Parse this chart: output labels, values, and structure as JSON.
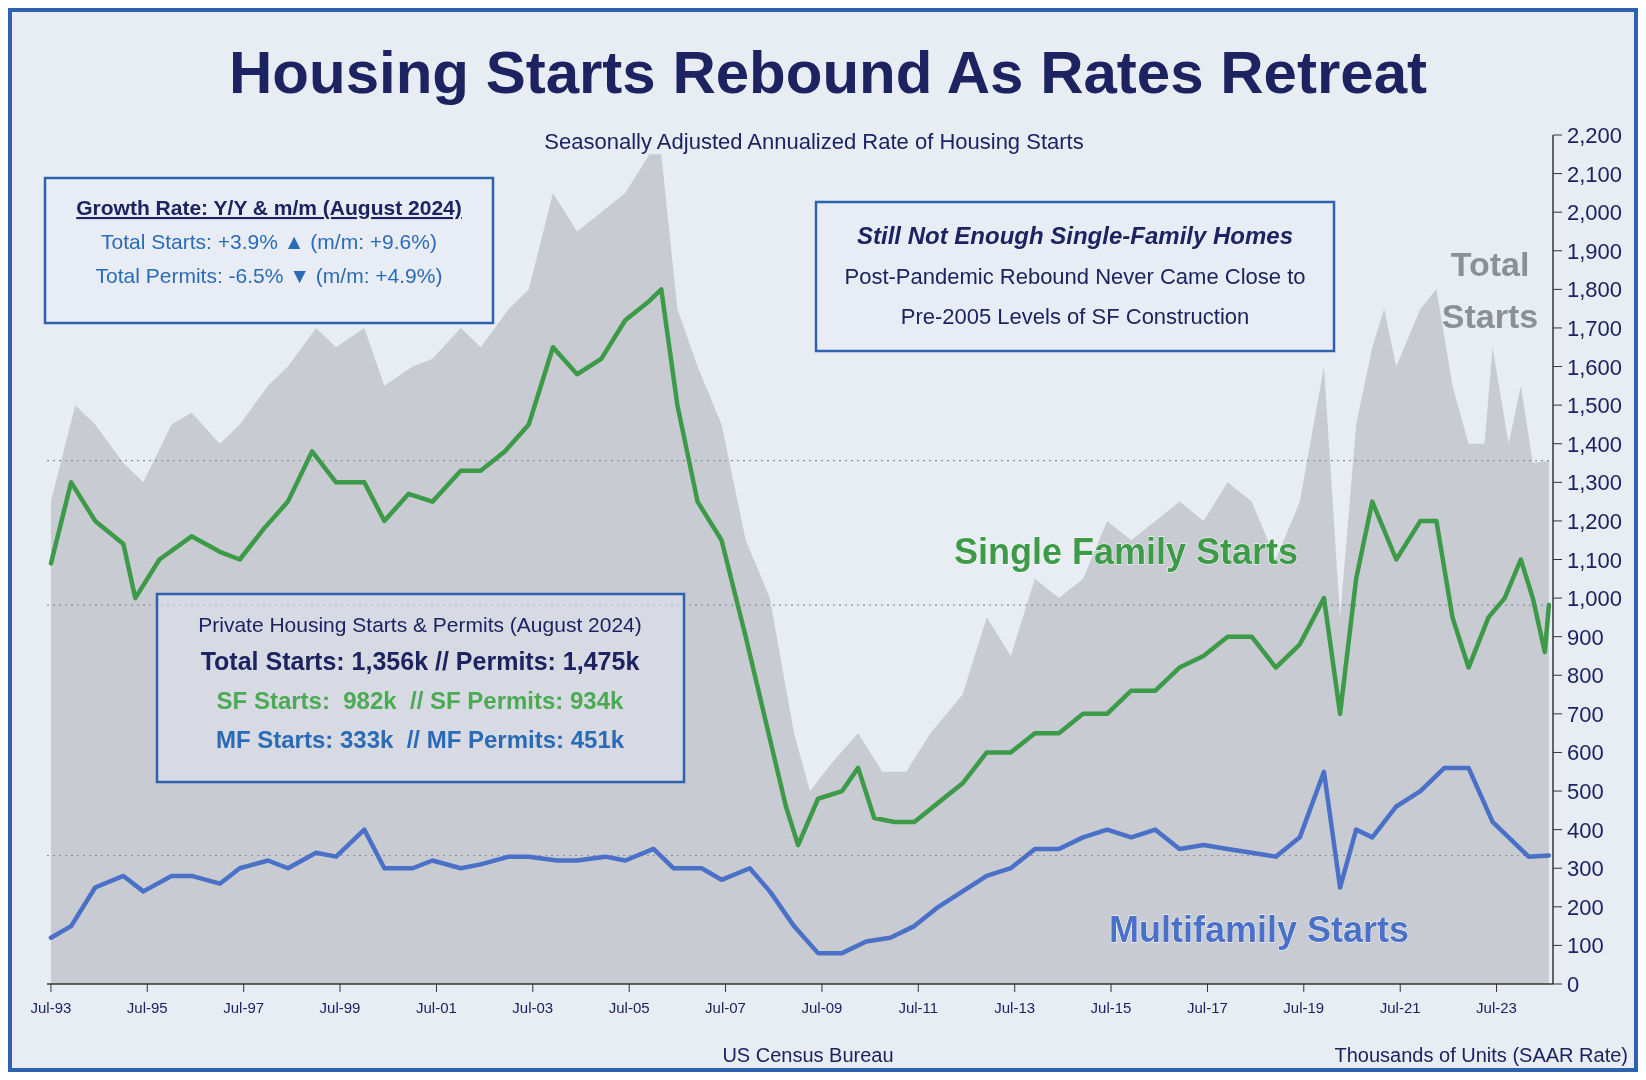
{
  "chart_data": {
    "type": "line",
    "title": "Housing Starts Rebound As Rates Retreat",
    "subtitle": "Seasonally Adjusted Annualized Rate of Housing Starts",
    "xlim": [
      "1993-06",
      "2024-09"
    ],
    "xticks": [
      {
        "value": "1993-07",
        "label": "Jul-93"
      },
      {
        "value": "1995-07",
        "label": "Jul-95"
      },
      {
        "value": "1997-07",
        "label": "Jul-97"
      },
      {
        "value": "1999-07",
        "label": "Jul-99"
      },
      {
        "value": "2001-07",
        "label": "Jul-01"
      },
      {
        "value": "2003-07",
        "label": "Jul-03"
      },
      {
        "value": "2005-07",
        "label": "Jul-05"
      },
      {
        "value": "2007-07",
        "label": "Jul-07"
      },
      {
        "value": "2009-07",
        "label": "Jul-09"
      },
      {
        "value": "2011-07",
        "label": "Jul-11"
      },
      {
        "value": "2013-07",
        "label": "Jul-13"
      },
      {
        "value": "2015-07",
        "label": "Jul-15"
      },
      {
        "value": "2017-07",
        "label": "Jul-17"
      },
      {
        "value": "2019-07",
        "label": "Jul-19"
      },
      {
        "value": "2021-07",
        "label": "Jul-21"
      },
      {
        "value": "2023-07",
        "label": "Jul-23"
      }
    ],
    "ylim": [
      0,
      2200
    ],
    "yticks": [
      0,
      100,
      200,
      300,
      400,
      500,
      600,
      700,
      800,
      900,
      {
        "value": 1000,
        "label": "1,000"
      },
      {
        "value": 1100,
        "label": "1,100"
      },
      {
        "value": 1200,
        "label": "1,200"
      },
      {
        "value": 1300,
        "label": "1,300"
      },
      {
        "value": 1400,
        "label": "1,400"
      },
      {
        "value": 1500,
        "label": "1,500"
      },
      {
        "value": 1600,
        "label": "1,600"
      },
      {
        "value": 1700,
        "label": "1,700"
      },
      {
        "value": 1800,
        "label": "1,800"
      },
      {
        "value": 1900,
        "label": "1,900"
      },
      {
        "value": 2000,
        "label": "2,000"
      },
      {
        "value": 2100,
        "label": "2,100"
      },
      {
        "value": 2200,
        "label": "2,200"
      }
    ],
    "series": [
      {
        "name": "Total Starts",
        "type": "area",
        "color": "#c8cbd1",
        "x": [
          "1993-07",
          "1994-01",
          "1994-06",
          "1995-01",
          "1995-06",
          "1996-01",
          "1996-06",
          "1997-01",
          "1997-06",
          "1998-01",
          "1998-06",
          "1999-01",
          "1999-06",
          "2000-01",
          "2000-06",
          "2001-01",
          "2001-06",
          "2002-01",
          "2002-06",
          "2003-01",
          "2003-06",
          "2003-12",
          "2004-06",
          "2004-12",
          "2005-06",
          "2005-12",
          "2006-03",
          "2006-07",
          "2006-12",
          "2007-06",
          "2007-12",
          "2008-06",
          "2008-12",
          "2009-04",
          "2009-10",
          "2010-04",
          "2010-10",
          "2011-04",
          "2011-10",
          "2012-06",
          "2012-12",
          "2013-06",
          "2013-12",
          "2014-06",
          "2014-12",
          "2015-06",
          "2015-12",
          "2016-06",
          "2016-12",
          "2017-06",
          "2017-12",
          "2018-06",
          "2018-12",
          "2019-06",
          "2019-12",
          "2020-04",
          "2020-08",
          "2020-12",
          "2021-03",
          "2021-06",
          "2021-12",
          "2022-04",
          "2022-08",
          "2022-12",
          "2023-04",
          "2023-06",
          "2023-10",
          "2024-01",
          "2024-04",
          "2024-08"
        ],
        "values": [
          1250,
          1500,
          1450,
          1350,
          1300,
          1450,
          1480,
          1400,
          1450,
          1550,
          1600,
          1700,
          1650,
          1700,
          1550,
          1600,
          1620,
          1700,
          1650,
          1750,
          1800,
          2050,
          1950,
          2000,
          2050,
          2150,
          2150,
          1750,
          1600,
          1450,
          1150,
          1000,
          650,
          500,
          580,
          650,
          550,
          550,
          650,
          750,
          950,
          850,
          1050,
          1000,
          1050,
          1200,
          1150,
          1200,
          1250,
          1200,
          1300,
          1250,
          1100,
          1250,
          1600,
          950,
          1450,
          1650,
          1750,
          1600,
          1750,
          1800,
          1550,
          1400,
          1400,
          1650,
          1400,
          1550,
          1350,
          1356
        ]
      },
      {
        "name": "Single Family Starts",
        "color": "#3c9a48",
        "x": [
          "1993-07",
          "1993-12",
          "1994-06",
          "1995-01",
          "1995-04",
          "1995-10",
          "1996-06",
          "1997-01",
          "1997-06",
          "1997-12",
          "1998-06",
          "1998-12",
          "1999-06",
          "2000-01",
          "2000-06",
          "2000-12",
          "2001-06",
          "2002-01",
          "2002-06",
          "2002-12",
          "2003-06",
          "2003-12",
          "2004-06",
          "2004-12",
          "2005-06",
          "2005-12",
          "2006-03",
          "2006-07",
          "2006-12",
          "2007-06",
          "2007-12",
          "2008-05",
          "2008-10",
          "2009-01",
          "2009-06",
          "2009-12",
          "2010-04",
          "2010-08",
          "2011-01",
          "2011-06",
          "2011-12",
          "2012-06",
          "2012-12",
          "2013-06",
          "2013-12",
          "2014-06",
          "2014-12",
          "2015-06",
          "2015-12",
          "2016-06",
          "2016-12",
          "2017-06",
          "2017-12",
          "2018-06",
          "2018-12",
          "2019-06",
          "2019-12",
          "2020-04",
          "2020-08",
          "2020-12",
          "2021-06",
          "2021-12",
          "2022-04",
          "2022-08",
          "2022-12",
          "2023-05",
          "2023-09",
          "2024-01",
          "2024-04",
          "2024-07",
          "2024-08"
        ],
        "values": [
          1090,
          1300,
          1200,
          1140,
          1000,
          1100,
          1160,
          1120,
          1100,
          1180,
          1250,
          1380,
          1300,
          1300,
          1200,
          1270,
          1250,
          1330,
          1330,
          1380,
          1450,
          1650,
          1580,
          1620,
          1720,
          1770,
          1800,
          1500,
          1250,
          1150,
          900,
          680,
          460,
          360,
          480,
          500,
          560,
          430,
          420,
          420,
          470,
          520,
          600,
          600,
          650,
          650,
          700,
          700,
          760,
          760,
          820,
          850,
          900,
          900,
          820,
          880,
          1000,
          700,
          1050,
          1250,
          1100,
          1200,
          1200,
          950,
          820,
          950,
          1000,
          1100,
          1000,
          860,
          982
        ]
      },
      {
        "name": "Multifamily Starts",
        "color": "#4a70c8",
        "x": [
          "1993-07",
          "1993-12",
          "1994-06",
          "1995-01",
          "1995-06",
          "1996-01",
          "1996-06",
          "1997-01",
          "1997-06",
          "1998-01",
          "1998-06",
          "1999-01",
          "1999-06",
          "2000-01",
          "2000-06",
          "2001-01",
          "2001-06",
          "2002-01",
          "2002-06",
          "2003-01",
          "2003-06",
          "2004-01",
          "2004-06",
          "2005-01",
          "2005-06",
          "2006-01",
          "2006-06",
          "2007-01",
          "2007-06",
          "2008-01",
          "2008-06",
          "2008-12",
          "2009-06",
          "2009-12",
          "2010-06",
          "2010-12",
          "2011-06",
          "2011-12",
          "2012-06",
          "2012-12",
          "2013-06",
          "2013-12",
          "2014-06",
          "2014-12",
          "2015-06",
          "2015-12",
          "2016-06",
          "2016-12",
          "2017-06",
          "2017-12",
          "2018-06",
          "2018-12",
          "2019-06",
          "2019-12",
          "2020-04",
          "2020-08",
          "2020-12",
          "2021-06",
          "2021-12",
          "2022-06",
          "2022-12",
          "2023-06",
          "2023-10",
          "2024-03",
          "2024-08"
        ],
        "values": [
          120,
          150,
          250,
          280,
          240,
          280,
          280,
          260,
          300,
          320,
          300,
          340,
          330,
          400,
          300,
          300,
          320,
          300,
          310,
          330,
          330,
          320,
          320,
          330,
          320,
          350,
          300,
          300,
          270,
          300,
          240,
          150,
          80,
          80,
          110,
          120,
          150,
          200,
          240,
          280,
          300,
          350,
          350,
          380,
          400,
          380,
          400,
          350,
          360,
          350,
          340,
          330,
          380,
          550,
          250,
          400,
          380,
          460,
          500,
          560,
          560,
          420,
          380,
          330,
          333
        ]
      }
    ],
    "ref_lines": [
      {
        "axis": "y",
        "value": 1356,
        "color": "#8a8f99",
        "line_style": "dotted"
      },
      {
        "axis": "y",
        "value": 982,
        "color": "#8a8f99",
        "line_style": "dotted"
      },
      {
        "axis": "y",
        "value": 333,
        "color": "#8a8f99",
        "line_style": "dotted"
      }
    ],
    "annotations": [
      "Growth Rate: Y/Y & m/m (August 2024)",
      "Total Starts: +3.9% ▲ (m/m: +9.6%)",
      "Total Permits: -6.5% ▼ (m/m: +4.9%)",
      "Still Not Enough Single-Family Homes",
      "Post-Pandemic Rebound Never Came Close to",
      "Pre-2005 Levels of SF Construction",
      "Private Housing Starts & Permits (August 2024)",
      "Total Starts: 1,356k // Permits: 1,475k",
      "SF Starts:  982k  // SF Permits: 934k",
      "MF Starts: 333k  // MF Permits: 451k",
      "US Census Bureau",
      "Thousands of Units (SAAR Rate)"
    ]
  }
}
